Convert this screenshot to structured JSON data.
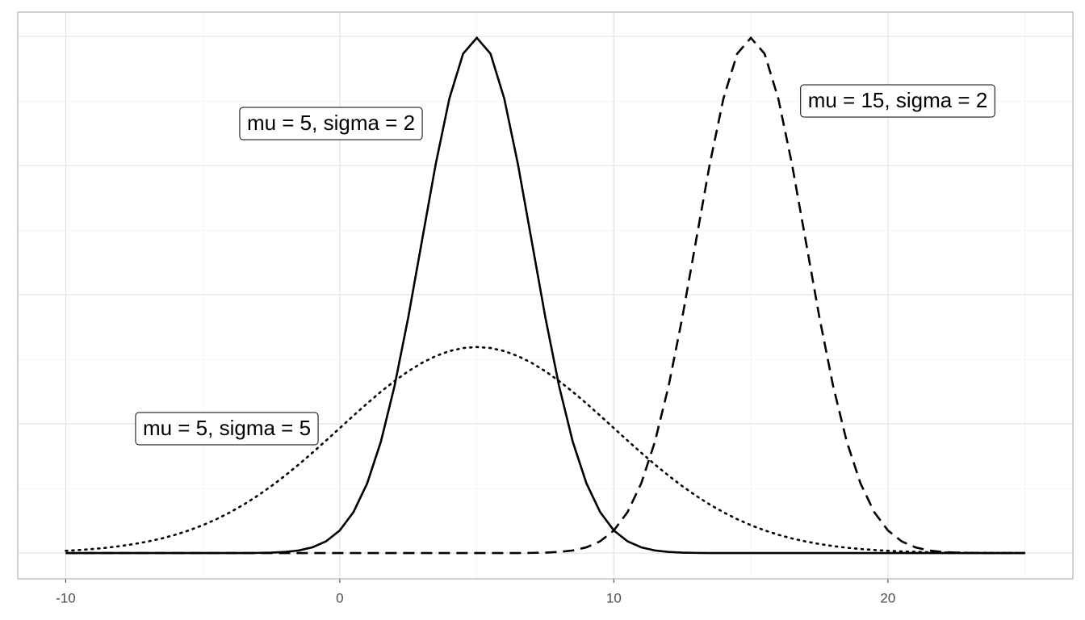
{
  "chart_data": {
    "type": "line",
    "x": [
      -10,
      -9.5,
      -9,
      -8.5,
      -8,
      -7.5,
      -7,
      -6.5,
      -6,
      -5.5,
      -5,
      -4.5,
      -4,
      -3.5,
      -3,
      -2.5,
      -2,
      -1.5,
      -1,
      -0.5,
      0,
      0.5,
      1,
      1.5,
      2,
      2.5,
      3,
      3.5,
      4,
      4.5,
      5,
      5.5,
      6,
      6.5,
      7,
      7.5,
      8,
      8.5,
      9,
      9.5,
      10,
      10.5,
      11,
      11.5,
      12,
      12.5,
      13,
      13.5,
      14,
      14.5,
      15,
      15.5,
      16,
      16.5,
      17,
      17.5,
      18,
      18.5,
      19,
      19.5,
      20,
      20.5,
      21,
      21.5,
      22,
      22.5,
      23,
      23.5,
      24,
      24.5,
      25
    ],
    "series": [
      {
        "name": "mu = 5, sigma = 2",
        "color": "#000000",
        "linestyle": "solid",
        "values": [
          0,
          0,
          0,
          0,
          0,
          0,
          0,
          0,
          0,
          0,
          0,
          0,
          1e-05,
          2e-05,
          7e-05,
          0.00018,
          0.00044,
          0.00101,
          0.00222,
          0.00455,
          0.00876,
          0.01587,
          0.027,
          0.04314,
          0.06476,
          0.09132,
          0.12099,
          0.15057,
          0.17603,
          0.19333,
          0.19947,
          0.19333,
          0.17603,
          0.15057,
          0.12099,
          0.09132,
          0.06476,
          0.04314,
          0.027,
          0.01587,
          0.00876,
          0.00455,
          0.00222,
          0.00101,
          0.00044,
          0.00018,
          7e-05,
          2e-05,
          1e-05,
          0,
          0,
          0,
          0,
          0,
          0,
          0,
          0,
          0,
          0,
          0,
          0,
          0,
          0,
          0,
          0,
          0,
          0,
          0,
          0,
          0,
          0
        ]
      },
      {
        "name": "mu = 15, sigma = 2",
        "color": "#000000",
        "linestyle": "dashed",
        "values": [
          0,
          0,
          0,
          0,
          0,
          0,
          0,
          0,
          0,
          0,
          0,
          0,
          0,
          0,
          0,
          0,
          0,
          0,
          0,
          0,
          0,
          0,
          0,
          0,
          0,
          0,
          0,
          0,
          0,
          0,
          0,
          0,
          1e-05,
          2e-05,
          7e-05,
          0.00018,
          0.00044,
          0.00101,
          0.00222,
          0.00455,
          0.00876,
          0.01587,
          0.027,
          0.04314,
          0.06476,
          0.09132,
          0.12099,
          0.15057,
          0.17603,
          0.19333,
          0.19947,
          0.19333,
          0.17603,
          0.15057,
          0.12099,
          0.09132,
          0.06476,
          0.04314,
          0.027,
          0.01587,
          0.00876,
          0.00455,
          0.00222,
          0.00101,
          0.00044,
          0.00018,
          7e-05,
          2e-05,
          1e-05,
          0,
          0
        ]
      },
      {
        "name": "mu = 5, sigma = 5",
        "color": "#000000",
        "linestyle": "dotted",
        "values": [
          0.00089,
          0.00119,
          0.00158,
          0.00208,
          0.00272,
          0.00351,
          0.00448,
          0.00566,
          0.00709,
          0.0088,
          0.0108,
          0.01312,
          0.01579,
          0.01881,
          0.02218,
          0.0259,
          0.02995,
          0.03427,
          0.03884,
          0.04357,
          0.04839,
          0.05322,
          0.05794,
          0.06245,
          0.06664,
          0.07041,
          0.07365,
          0.07628,
          0.07821,
          0.07939,
          0.07979,
          0.07939,
          0.07821,
          0.07628,
          0.07365,
          0.07041,
          0.06664,
          0.06245,
          0.05794,
          0.05322,
          0.04839,
          0.04357,
          0.03884,
          0.03427,
          0.02995,
          0.0259,
          0.02218,
          0.01881,
          0.01579,
          0.01312,
          0.0108,
          0.0088,
          0.00709,
          0.00566,
          0.00448,
          0.00351,
          0.00272,
          0.00208,
          0.00158,
          0.00119,
          0.00089,
          0.00065,
          0.00048,
          0.00034,
          0.00025,
          0.00017,
          0.00012,
          8e-05,
          6e-05,
          4e-05,
          3e-05
        ]
      }
    ],
    "xlim": [
      -11.75,
      26.75
    ],
    "xticks": [
      -10,
      0,
      10,
      20
    ],
    "xminor": [
      -5,
      5,
      15,
      25
    ],
    "ylim": [
      -0.00997,
      0.20944
    ],
    "ygrid": [
      0,
      0.05,
      0.1,
      0.15,
      0.2
    ],
    "yminor": [
      0.025,
      0.075,
      0.125,
      0.175
    ],
    "grid": true
  }
}
